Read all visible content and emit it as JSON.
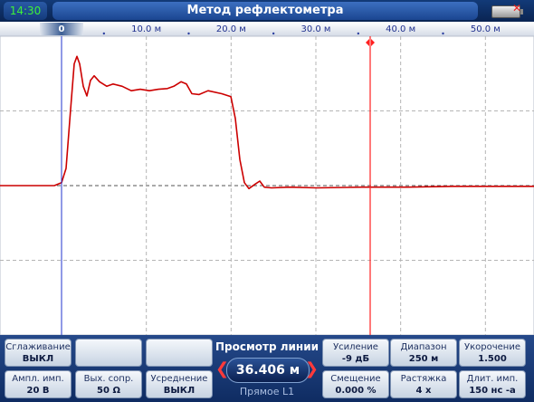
{
  "header": {
    "time": "14:30",
    "title": "Метод рефлектометра"
  },
  "chart_data": {
    "type": "line",
    "xlim": [
      -7.26,
      55.73
    ],
    "ylim": [
      -2,
      2
    ],
    "xticks": [
      0,
      {
        "value": 10,
        "label": "10.0 м"
      },
      {
        "value": 20,
        "label": "20.0 м"
      },
      {
        "value": 30,
        "label": "30.0 м"
      },
      {
        "value": 40,
        "label": "40.0 м"
      },
      {
        "value": 50,
        "label": "50.0 м"
      }
    ],
    "yticks": [
      -1,
      0,
      1
    ],
    "grid": true,
    "start_cursor": 0,
    "cursor_x": 36.406,
    "x": [
      -7.26,
      -0.85,
      0,
      0.53,
      1.07,
      1.49,
      1.81,
      2.14,
      2.56,
      2.99,
      3.42,
      3.84,
      4.48,
      5.34,
      6.09,
      7.15,
      8.22,
      9.29,
      10.36,
      11.42,
      12.49,
      13.24,
      14.09,
      14.73,
      15.37,
      16.23,
      17.29,
      18.9,
      19.97,
      20.5,
      21.03,
      21.57,
      22.1,
      22.85,
      23.38,
      23.92,
      24.77,
      26.9,
      30.11,
      35.45,
      40.79,
      46.13,
      51.46,
      55.73
    ],
    "series": [
      {
        "color": "#cc0000",
        "values": [
          0,
          0,
          0.04,
          0.23,
          1.02,
          1.63,
          1.73,
          1.63,
          1.33,
          1.2,
          1.41,
          1.47,
          1.39,
          1.33,
          1.36,
          1.33,
          1.27,
          1.29,
          1.27,
          1.29,
          1.3,
          1.33,
          1.39,
          1.36,
          1.23,
          1.22,
          1.27,
          1.23,
          1.19,
          0.9,
          0.35,
          0.04,
          -0.04,
          0.02,
          0.06,
          -0.02,
          -0.03,
          -0.02,
          -0.03,
          -0.02,
          -0.02,
          -0.01,
          -0.01,
          -0.01
        ]
      }
    ]
  },
  "panel": {
    "buttons": [
      {
        "label": "Сглаживание",
        "value": "ВЫКЛ"
      },
      {
        "label": "Ампл. имп.",
        "value": "20 В"
      },
      {
        "label": "Вых. сопр.",
        "value": "50 Ω"
      },
      {
        "label": "Усреднение",
        "value": "ВЫКЛ"
      },
      {
        "label": "Усиление",
        "value": "-9 дБ"
      },
      {
        "label": "Смещение",
        "value": "0.000 %"
      },
      {
        "label": "Диапазон",
        "value": "250 м"
      },
      {
        "label": "Растяжка",
        "value": "4 х"
      },
      {
        "label": "Укорочение",
        "value": "1.500"
      },
      {
        "label": "Длит. имп.",
        "value": "150 нс -а"
      }
    ],
    "center": {
      "title": "Просмотр линии",
      "value": "36.406 м",
      "subtitle": "Прямое L1"
    }
  }
}
